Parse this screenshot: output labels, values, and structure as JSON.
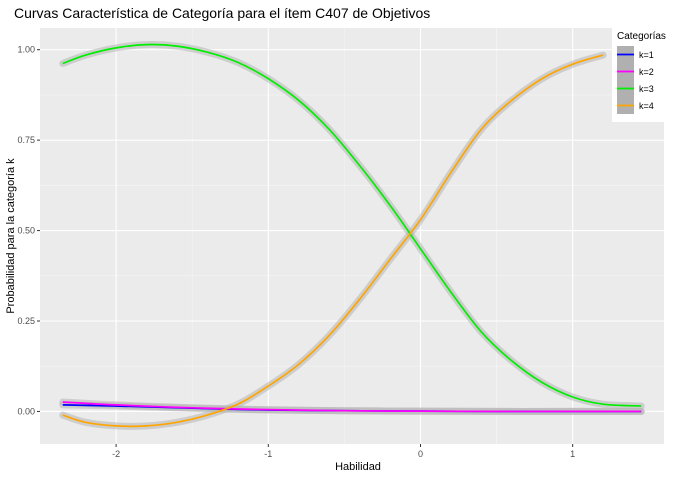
{
  "chart_data": {
    "type": "line",
    "title": "Curvas Característica de Categoría para el ítem C407 de Objetivos",
    "xlabel": "Habilidad",
    "ylabel": "Probabilidad para la categoría k",
    "xlim": [
      -2.5,
      1.6
    ],
    "ylim": [
      -0.09,
      1.06
    ],
    "xticks": [
      -2,
      -1,
      0,
      1
    ],
    "xtick_labels": [
      "-2",
      "-1",
      "0",
      "1"
    ],
    "yticks": [
      0,
      0.25,
      0.5,
      0.75,
      1
    ],
    "ytick_labels": [
      "0.00",
      "0.25",
      "0.50",
      "0.75",
      "1.00"
    ],
    "grid": true,
    "legend": {
      "title": "Categorías",
      "position": "top-right"
    },
    "series": [
      {
        "name": "k=1",
        "color": "#0000ff",
        "x": [
          -2.35,
          -2.0,
          -1.5,
          -1.0,
          -0.5,
          0,
          0.5,
          1.0,
          1.45
        ],
        "y": [
          0.018,
          0.015,
          0.009,
          0.004,
          0.002,
          0.001,
          0.0,
          0.0,
          0.0
        ]
      },
      {
        "name": "k=2",
        "color": "#ff00ff",
        "x": [
          -2.35,
          -2.0,
          -1.5,
          -1.0,
          -0.5,
          0,
          0.5,
          1.0,
          1.45
        ],
        "y": [
          0.026,
          0.018,
          0.01,
          0.005,
          0.002,
          0.001,
          0.0,
          0.0,
          0.0
        ]
      },
      {
        "name": "k=3",
        "color": "#00ee00",
        "x": [
          -2.35,
          -2.2,
          -2.0,
          -1.8,
          -1.6,
          -1.4,
          -1.2,
          -1.0,
          -0.8,
          -0.6,
          -0.4,
          -0.2,
          0.0,
          0.2,
          0.4,
          0.6,
          0.8,
          1.0,
          1.2,
          1.45
        ],
        "y": [
          0.962,
          0.985,
          1.005,
          1.014,
          1.01,
          0.993,
          0.965,
          0.92,
          0.86,
          0.78,
          0.68,
          0.57,
          0.45,
          0.33,
          0.22,
          0.14,
          0.08,
          0.04,
          0.02,
          0.015
        ]
      },
      {
        "name": "k=4",
        "color": "#ffa500",
        "x": [
          -2.35,
          -2.2,
          -2.0,
          -1.8,
          -1.6,
          -1.4,
          -1.2,
          -1.0,
          -0.8,
          -0.6,
          -0.4,
          -0.2,
          0.0,
          0.2,
          0.4,
          0.6,
          0.8,
          1.0,
          1.2
        ],
        "y": [
          -0.01,
          -0.03,
          -0.04,
          -0.04,
          -0.03,
          -0.01,
          0.02,
          0.07,
          0.13,
          0.21,
          0.31,
          0.42,
          0.53,
          0.66,
          0.78,
          0.86,
          0.92,
          0.96,
          0.985
        ]
      }
    ]
  }
}
